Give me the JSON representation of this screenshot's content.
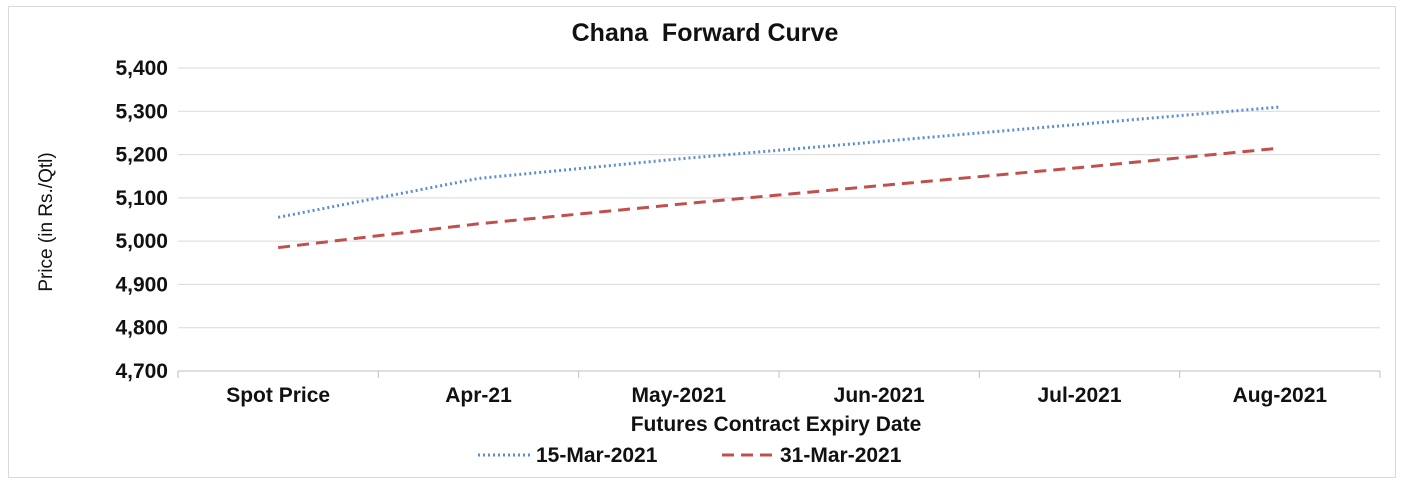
{
  "chart_data": {
    "type": "line",
    "title": "Chana  Forward Curve",
    "xlabel": "Futures Contract Expiry Date",
    "ylabel": "Price (in Rs./Qtl)",
    "categories": [
      "Spot Price",
      "Apr-21",
      "May-2021",
      "Jun-2021",
      "Jul-2021",
      "Aug-2021"
    ],
    "ylim": [
      4700,
      5400
    ],
    "yticks": [
      4700,
      4800,
      4900,
      5000,
      5100,
      5200,
      5300,
      5400
    ],
    "ytick_labels": [
      "4,700",
      "4,800",
      "4,900",
      "5,000",
      "5,100",
      "5,200",
      "5,300",
      "5,400"
    ],
    "grid": true,
    "legend_position": "bottom",
    "series": [
      {
        "name": "15-Mar-2021",
        "values": [
          5055,
          5145,
          5190,
          5230,
          5270,
          5310
        ],
        "color": "#5b8ed0",
        "style": "dotted"
      },
      {
        "name": "31-Mar-2021",
        "values": [
          4985,
          5040,
          5085,
          5128,
          5170,
          5215
        ],
        "color": "#c0504d",
        "style": "dashed"
      }
    ]
  }
}
